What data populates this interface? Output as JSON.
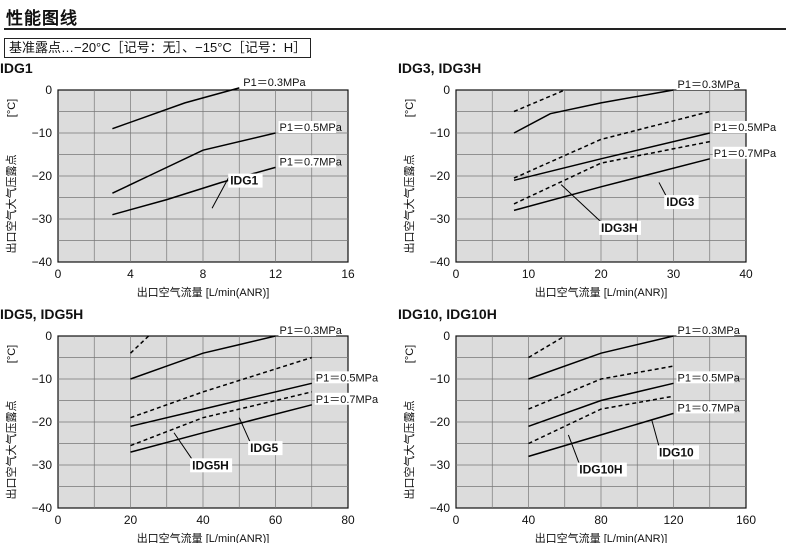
{
  "page": {
    "title": "性能图线",
    "subtitle": "基准露点…−20°C［记号：无］、−15°C［记号：H］"
  },
  "chart_data": [
    {
      "type": "line",
      "title": "IDG1",
      "xlabel": "出口空气流量 [L/min(ANR)]",
      "ylabel": "出口空气大气压露点",
      "yunit": "[°C]",
      "xlim": [
        0,
        16
      ],
      "ylim": [
        -40,
        0
      ],
      "xticks": [
        0,
        4,
        8,
        12,
        16
      ],
      "xgrid_step": 2,
      "yticks": [
        0,
        -10,
        -20,
        -30,
        -40
      ],
      "ygrid_step": 5,
      "series": [
        {
          "name": "P1＝0.3MPa",
          "style": "solid",
          "x": [
            3,
            5,
            7,
            10
          ],
          "y": [
            -9,
            -6,
            -3,
            0.5
          ]
        },
        {
          "name": "P1＝0.5MPa",
          "style": "solid",
          "x": [
            3,
            5,
            8,
            12
          ],
          "y": [
            -24,
            -20,
            -14,
            -10
          ]
        },
        {
          "name": "P1＝0.7MPa",
          "style": "solid",
          "x": [
            3,
            6,
            9,
            12
          ],
          "y": [
            -29,
            -25.5,
            -21.5,
            -18
          ]
        }
      ],
      "annotations": [
        {
          "text": "IDG1",
          "x": 8.5,
          "y": -27.5,
          "tx": 9.5,
          "ty": -22
        }
      ]
    },
    {
      "type": "line",
      "title": "IDG3, IDG3H",
      "xlabel": "出口空气流量 [L/min(ANR)]",
      "ylabel": "出口空气大气压露点",
      "yunit": "[°C]",
      "xlim": [
        0,
        40
      ],
      "ylim": [
        -40,
        0
      ],
      "xticks": [
        0,
        10,
        20,
        30,
        40
      ],
      "xgrid_step": 5,
      "yticks": [
        0,
        -10,
        -20,
        -30,
        -40
      ],
      "ygrid_step": 5,
      "series": [
        {
          "name": "P1＝0.3MPa",
          "style": "solid",
          "x": [
            8,
            13,
            20,
            30
          ],
          "y": [
            -10,
            -5.5,
            -3,
            0
          ]
        },
        {
          "name": "",
          "style": "dashed",
          "x": [
            8,
            15
          ],
          "y": [
            -5,
            0
          ]
        },
        {
          "name": "P1＝0.5MPa",
          "style": "solid",
          "x": [
            8,
            20,
            35
          ],
          "y": [
            -21,
            -16,
            -10
          ]
        },
        {
          "name": "",
          "style": "dashed",
          "x": [
            8,
            20,
            35
          ],
          "y": [
            -20.5,
            -11.5,
            -5
          ]
        },
        {
          "name": "P1＝0.7MPa",
          "style": "solid",
          "x": [
            8,
            20,
            35
          ],
          "y": [
            -28,
            -22.5,
            -16
          ]
        },
        {
          "name": "",
          "style": "dashed",
          "x": [
            8,
            20,
            35
          ],
          "y": [
            -26.5,
            -17,
            -12
          ]
        }
      ],
      "annotations": [
        {
          "text": "IDG3",
          "x": 28,
          "y": -21.5,
          "tx": 29,
          "ty": -27
        },
        {
          "text": "IDG3H",
          "x": 14.5,
          "y": -22,
          "tx": 20,
          "ty": -33
        }
      ]
    },
    {
      "type": "line",
      "title": "IDG5, IDG5H",
      "xlabel": "出口空气流量 [L/min(ANR)]",
      "ylabel": "出口空气大气压露点",
      "yunit": "[°C]",
      "xlim": [
        0,
        80
      ],
      "ylim": [
        -40,
        0
      ],
      "xticks": [
        0,
        20,
        40,
        60,
        80
      ],
      "xgrid_step": 10,
      "yticks": [
        0,
        -10,
        -20,
        -30,
        -40
      ],
      "ygrid_step": 5,
      "series": [
        {
          "name": "P1＝0.3MPa",
          "style": "solid",
          "x": [
            20,
            30,
            40,
            50,
            60
          ],
          "y": [
            -10,
            -7,
            -4,
            -2,
            0
          ]
        },
        {
          "name": "",
          "style": "dashed",
          "x": [
            20,
            25
          ],
          "y": [
            -4,
            0
          ]
        },
        {
          "name": "P1＝0.5MPa",
          "style": "solid",
          "x": [
            20,
            40,
            70
          ],
          "y": [
            -21,
            -17,
            -11
          ]
        },
        {
          "name": "",
          "style": "dashed",
          "x": [
            20,
            40,
            70
          ],
          "y": [
            -19,
            -13,
            -5
          ]
        },
        {
          "name": "P1＝0.7MPa",
          "style": "solid",
          "x": [
            20,
            40,
            70
          ],
          "y": [
            -27,
            -22.5,
            -16
          ]
        },
        {
          "name": "",
          "style": "dashed",
          "x": [
            20,
            40,
            70
          ],
          "y": [
            -25.5,
            -19,
            -13
          ]
        }
      ],
      "annotations": [
        {
          "text": "IDG5",
          "x": 50,
          "y": -19,
          "tx": 53,
          "ty": -27
        },
        {
          "text": "IDG5H",
          "x": 32,
          "y": -22.5,
          "tx": 37,
          "ty": -31
        }
      ]
    },
    {
      "type": "line",
      "title": "IDG10, IDG10H",
      "xlabel": "出口空气流量 [L/min(ANR)]",
      "ylabel": "出口空气大气压露点",
      "yunit": "[°C]",
      "xlim": [
        0,
        160
      ],
      "ylim": [
        -40,
        0
      ],
      "xticks": [
        0,
        40,
        80,
        120,
        160
      ],
      "xgrid_step": 20,
      "yticks": [
        0,
        -10,
        -20,
        -30,
        -40
      ],
      "ygrid_step": 5,
      "series": [
        {
          "name": "P1＝0.3MPa",
          "style": "solid",
          "x": [
            40,
            80,
            120
          ],
          "y": [
            -10,
            -4,
            0
          ]
        },
        {
          "name": "",
          "style": "dashed",
          "x": [
            40,
            60
          ],
          "y": [
            -5,
            0
          ]
        },
        {
          "name": "P1＝0.5MPa",
          "style": "solid",
          "x": [
            40,
            80,
            120
          ],
          "y": [
            -21,
            -15,
            -11
          ]
        },
        {
          "name": "",
          "style": "dashed",
          "x": [
            40,
            80,
            120
          ],
          "y": [
            -17,
            -10,
            -7
          ]
        },
        {
          "name": "P1＝0.7MPa",
          "style": "solid",
          "x": [
            40,
            80,
            120
          ],
          "y": [
            -28,
            -23,
            -18
          ]
        },
        {
          "name": "",
          "style": "dashed",
          "x": [
            40,
            80,
            120
          ],
          "y": [
            -25,
            -17,
            -14
          ]
        }
      ],
      "annotations": [
        {
          "text": "IDG10",
          "x": 108,
          "y": -19.5,
          "tx": 112,
          "ty": -28
        },
        {
          "text": "IDG10H",
          "x": 62,
          "y": -23,
          "tx": 68,
          "ty": -32
        }
      ]
    }
  ]
}
